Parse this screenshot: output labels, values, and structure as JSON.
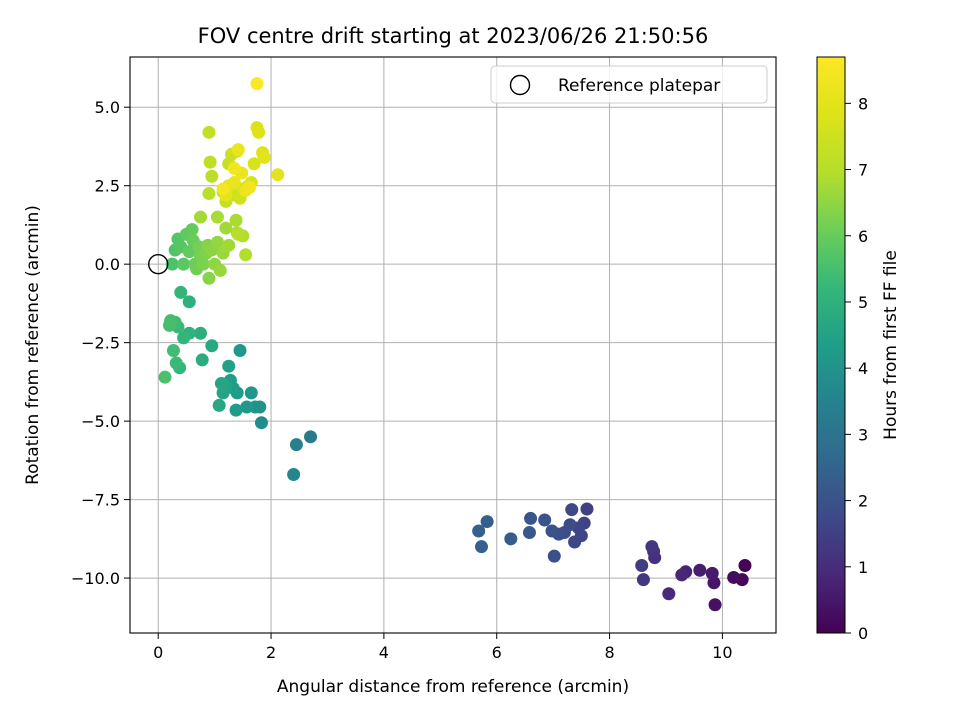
{
  "chart_data": {
    "type": "scatter",
    "title": "FOV centre drift starting at 2023/06/26 21:50:56",
    "xlabel": "Angular distance from reference (arcmin)",
    "ylabel": "Rotation from reference (arcmin)",
    "xlim": [
      -0.5,
      10.95
    ],
    "ylim": [
      -11.75,
      6.6
    ],
    "xticks": [
      0,
      2,
      4,
      6,
      8,
      10
    ],
    "yticks": [
      -10.0,
      -7.5,
      -5.0,
      -2.5,
      0.0,
      2.5,
      5.0
    ],
    "xtick_labels": [
      "0",
      "2",
      "4",
      "6",
      "8",
      "10"
    ],
    "ytick_labels": [
      "−10.0",
      "−7.5",
      "−5.0",
      "−2.5",
      "0.0",
      "2.5",
      "5.0"
    ],
    "grid": true,
    "legend": {
      "placement": "top-right",
      "entries": [
        "Reference platepar"
      ]
    },
    "reference_point": {
      "x": 0,
      "y": 0,
      "label": "Reference platepar"
    },
    "colorbar": {
      "label": "Hours from first FF file",
      "colormap": "viridis",
      "range": [
        0,
        8.7
      ],
      "ticks": [
        0,
        1,
        2,
        3,
        4,
        5,
        6,
        7,
        8
      ],
      "tick_labels": [
        "0",
        "1",
        "2",
        "3",
        "4",
        "5",
        "6",
        "7",
        "8"
      ]
    },
    "points": [
      [
        10.4,
        -9.6,
        0.05
      ],
      [
        10.35,
        -10.05,
        0.15
      ],
      [
        10.2,
        -9.98,
        0.25
      ],
      [
        9.87,
        -10.85,
        0.35
      ],
      [
        9.85,
        -10.15,
        0.45
      ],
      [
        9.82,
        -9.85,
        0.55
      ],
      [
        9.6,
        -9.75,
        0.65
      ],
      [
        9.35,
        -9.8,
        0.75
      ],
      [
        9.28,
        -9.9,
        0.85
      ],
      [
        9.05,
        -10.5,
        0.95
      ],
      [
        8.8,
        -9.35,
        1.05
      ],
      [
        8.78,
        -9.15,
        1.15
      ],
      [
        8.75,
        -9.0,
        1.25
      ],
      [
        8.6,
        -10.05,
        1.3
      ],
      [
        8.57,
        -9.6,
        1.4
      ],
      [
        7.6,
        -7.8,
        1.5
      ],
      [
        7.55,
        -8.25,
        1.55
      ],
      [
        7.5,
        -8.65,
        1.6
      ],
      [
        7.45,
        -8.4,
        1.65
      ],
      [
        7.38,
        -8.85,
        1.7
      ],
      [
        7.33,
        -7.82,
        1.75
      ],
      [
        7.3,
        -8.3,
        1.8
      ],
      [
        7.2,
        -8.55,
        1.85
      ],
      [
        7.1,
        -8.6,
        1.9
      ],
      [
        7.02,
        -9.3,
        1.95
      ],
      [
        6.98,
        -8.5,
        2.0
      ],
      [
        6.85,
        -8.15,
        2.05
      ],
      [
        6.6,
        -8.1,
        2.1
      ],
      [
        6.58,
        -8.55,
        2.15
      ],
      [
        6.25,
        -8.75,
        2.25
      ],
      [
        5.83,
        -8.2,
        2.3
      ],
      [
        5.73,
        -9.0,
        2.35
      ],
      [
        5.68,
        -8.5,
        2.4
      ],
      [
        2.7,
        -5.5,
        3.2
      ],
      [
        2.45,
        -5.75,
        3.4
      ],
      [
        2.4,
        -6.7,
        3.6
      ],
      [
        1.83,
        -5.05,
        3.8
      ],
      [
        1.8,
        -4.55,
        3.9
      ],
      [
        1.72,
        -4.55,
        4.0
      ],
      [
        1.65,
        -4.1,
        4.1
      ],
      [
        1.57,
        -4.55,
        4.15
      ],
      [
        1.45,
        -2.75,
        4.2
      ],
      [
        1.4,
        -4.1,
        4.25
      ],
      [
        1.38,
        -4.65,
        4.3
      ],
      [
        1.33,
        -3.95,
        4.35
      ],
      [
        1.28,
        -3.7,
        4.4
      ],
      [
        1.25,
        -3.25,
        4.45
      ],
      [
        1.2,
        -3.9,
        4.5
      ],
      [
        1.15,
        -4.1,
        4.55
      ],
      [
        1.12,
        -3.8,
        4.6
      ],
      [
        1.08,
        -4.5,
        4.65
      ],
      [
        0.95,
        -2.6,
        4.75
      ],
      [
        0.78,
        -3.05,
        4.85
      ],
      [
        0.75,
        -2.2,
        4.9
      ],
      [
        0.55,
        -1.2,
        5.0
      ],
      [
        0.55,
        -2.2,
        5.05
      ],
      [
        0.45,
        -2.35,
        5.1
      ],
      [
        0.4,
        -0.9,
        5.15
      ],
      [
        0.38,
        -3.3,
        5.2
      ],
      [
        0.35,
        -2.0,
        5.25
      ],
      [
        0.32,
        -3.15,
        5.3
      ],
      [
        0.3,
        -1.85,
        5.35
      ],
      [
        0.27,
        -2.75,
        5.4
      ],
      [
        0.22,
        -1.8,
        5.45
      ],
      [
        0.2,
        -1.95,
        5.5
      ],
      [
        0.12,
        -3.6,
        5.55
      ],
      [
        0.25,
        0.0,
        5.6
      ],
      [
        0.3,
        0.45,
        5.65
      ],
      [
        0.35,
        0.8,
        5.7
      ],
      [
        0.4,
        0.55,
        5.75
      ],
      [
        0.45,
        0.0,
        5.8
      ],
      [
        0.5,
        0.95,
        5.85
      ],
      [
        0.55,
        0.4,
        5.9
      ],
      [
        0.6,
        1.1,
        5.95
      ],
      [
        0.62,
        0.75,
        6.0
      ],
      [
        0.65,
        0.0,
        6.05
      ],
      [
        0.68,
        -0.15,
        6.1
      ],
      [
        0.72,
        0.55,
        6.15
      ],
      [
        0.75,
        0.25,
        6.2
      ],
      [
        0.8,
        0.0,
        6.25
      ],
      [
        0.85,
        0.35,
        6.3
      ],
      [
        0.88,
        0.6,
        6.35
      ],
      [
        0.9,
        -0.45,
        6.4
      ],
      [
        0.95,
        0.45,
        6.45
      ],
      [
        1.0,
        0.0,
        6.5
      ],
      [
        1.05,
        0.7,
        6.55
      ],
      [
        1.1,
        -0.2,
        6.6
      ],
      [
        1.15,
        0.35,
        6.65
      ],
      [
        1.2,
        1.15,
        6.7
      ],
      [
        1.25,
        0.6,
        6.72
      ],
      [
        0.75,
        1.5,
        6.75
      ],
      [
        1.05,
        1.5,
        6.8
      ],
      [
        1.38,
        1.4,
        6.82
      ],
      [
        1.4,
        1.0,
        6.85
      ],
      [
        1.5,
        0.9,
        6.9
      ],
      [
        1.55,
        0.3,
        6.95
      ],
      [
        1.42,
        0.95,
        7.0
      ],
      [
        0.9,
        2.25,
        7.05
      ],
      [
        0.95,
        2.8,
        7.1
      ],
      [
        0.92,
        3.25,
        7.15
      ],
      [
        0.9,
        4.2,
        7.2
      ],
      [
        1.15,
        2.3,
        7.25
      ],
      [
        1.2,
        2.0,
        7.3
      ],
      [
        1.25,
        3.2,
        7.35
      ],
      [
        1.3,
        3.5,
        7.4
      ],
      [
        1.35,
        2.2,
        7.45
      ],
      [
        1.4,
        3.6,
        7.5
      ],
      [
        1.45,
        2.1,
        7.55
      ],
      [
        1.5,
        2.4,
        7.6
      ],
      [
        1.6,
        2.5,
        7.65
      ],
      [
        1.65,
        2.6,
        7.7
      ],
      [
        1.7,
        3.2,
        7.75
      ],
      [
        1.75,
        4.35,
        7.8
      ],
      [
        1.78,
        4.2,
        7.85
      ],
      [
        1.85,
        3.55,
        7.9
      ],
      [
        1.88,
        3.4,
        7.95
      ],
      [
        2.12,
        2.85,
        8.0
      ],
      [
        1.2,
        2.2,
        8.05
      ],
      [
        1.25,
        2.5,
        8.1
      ],
      [
        1.35,
        2.6,
        8.15
      ],
      [
        1.42,
        3.65,
        8.2
      ],
      [
        1.48,
        2.9,
        8.25
      ],
      [
        1.55,
        2.35,
        8.3
      ],
      [
        1.62,
        2.45,
        8.35
      ],
      [
        1.35,
        3.05,
        8.4
      ],
      [
        1.15,
        2.4,
        8.45
      ],
      [
        1.75,
        5.75,
        8.7
      ]
    ]
  }
}
